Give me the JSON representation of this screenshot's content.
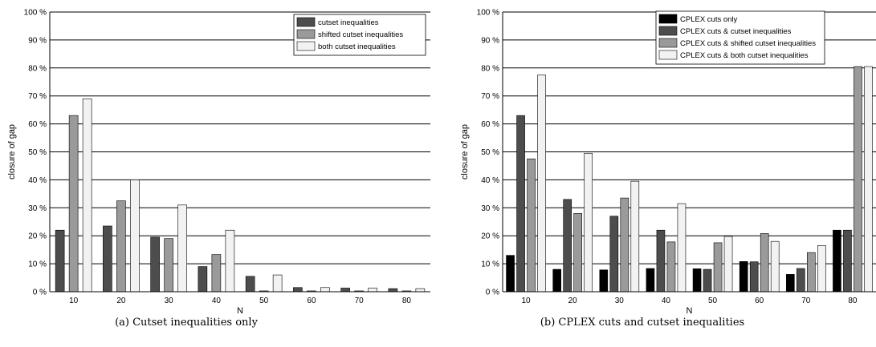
{
  "chart_data": [
    {
      "type": "bar",
      "caption": "(a)  Cutset inequalities only",
      "xlabel": "N",
      "ylabel": "closure of gap",
      "ylim": [
        0,
        100
      ],
      "yticks": [
        "0 %",
        "10 %",
        "20 %",
        "30 %",
        "40 %",
        "50 %",
        "60 %",
        "70 %",
        "80 %",
        "90 %",
        "100 %"
      ],
      "grid": "horizontal",
      "legend_position": "top-right",
      "categories": [
        "10",
        "20",
        "30",
        "40",
        "50",
        "60",
        "70",
        "80"
      ],
      "series": [
        {
          "name": "cutset inequalities",
          "color": "#4d4d4d",
          "values": [
            22,
            23.5,
            19.5,
            9,
            5.5,
            1.5,
            1.3,
            1.1
          ]
        },
        {
          "name": "shifted cutset inequalities",
          "color": "#9a9a9a",
          "values": [
            63,
            32.5,
            19,
            13.3,
            0.3,
            0.3,
            0.3,
            0.3
          ]
        },
        {
          "name": "both cutset inequalities",
          "color": "#f2f2f2",
          "values": [
            69,
            40,
            31,
            22,
            6,
            1.5,
            1.3,
            1.1
          ]
        }
      ]
    },
    {
      "type": "bar",
      "caption": "(b)  CPLEX cuts and cutset inequalities",
      "xlabel": "N",
      "ylabel": "closure of gap",
      "ylim": [
        0,
        100
      ],
      "yticks": [
        "0 %",
        "10 %",
        "20 %",
        "30 %",
        "40 %",
        "50 %",
        "60 %",
        "70 %",
        "80 %",
        "90 %",
        "100 %"
      ],
      "grid": "horizontal",
      "legend_position": "top-right",
      "categories": [
        "10",
        "20",
        "30",
        "40",
        "50",
        "60",
        "70",
        "80"
      ],
      "series": [
        {
          "name": "CPLEX cuts only",
          "color": "#000000",
          "values": [
            13,
            8,
            7.8,
            8.3,
            8.2,
            10.8,
            6.2,
            22
          ]
        },
        {
          "name": "CPLEX cuts & cutset inequalities",
          "color": "#4d4d4d",
          "values": [
            63,
            33,
            27,
            22,
            8,
            10.7,
            8.3,
            22
          ]
        },
        {
          "name": "CPLEX cuts & shifted cutset inequalities",
          "color": "#9a9a9a",
          "values": [
            47.5,
            28,
            33.5,
            17.8,
            17.5,
            20.8,
            14,
            80.5
          ]
        },
        {
          "name": "CPLEX cuts & both cutset inequalities",
          "color": "#f2f2f2",
          "values": [
            77.5,
            49.5,
            39.5,
            31.5,
            19.8,
            18,
            16.5,
            80.5
          ]
        }
      ]
    }
  ]
}
